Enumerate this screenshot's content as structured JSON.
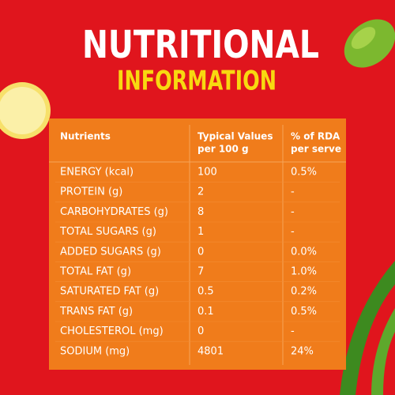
{
  "header": {
    "title": "NUTRITIONAL",
    "subtitle": "INFORMATION"
  },
  "table": {
    "columns": [
      [
        "Nutrients"
      ],
      [
        "Typical Values",
        "per 100 g"
      ],
      [
        "% of RDA",
        "per serve"
      ]
    ],
    "rows": [
      [
        "ENERGY (kcal)",
        "100",
        "0.5%"
      ],
      [
        "PROTEIN (g)",
        "2",
        "-"
      ],
      [
        "CARBOHYDRATES (g)",
        "8",
        "-"
      ],
      [
        "TOTAL SUGARS (g)",
        "1",
        "-"
      ],
      [
        "ADDED SUGARS (g)",
        "0",
        "0.0%"
      ],
      [
        "TOTAL FAT (g)",
        "7",
        "1.0%"
      ],
      [
        "SATURATED FAT (g)",
        "0.5",
        "0.2%"
      ],
      [
        "TRANS FAT (g)",
        "0.1",
        "0.5%"
      ],
      [
        "CHOLESTEROL (mg)",
        "0",
        "-"
      ],
      [
        "SODIUM (mg)",
        "4801",
        "24%"
      ]
    ]
  }
}
